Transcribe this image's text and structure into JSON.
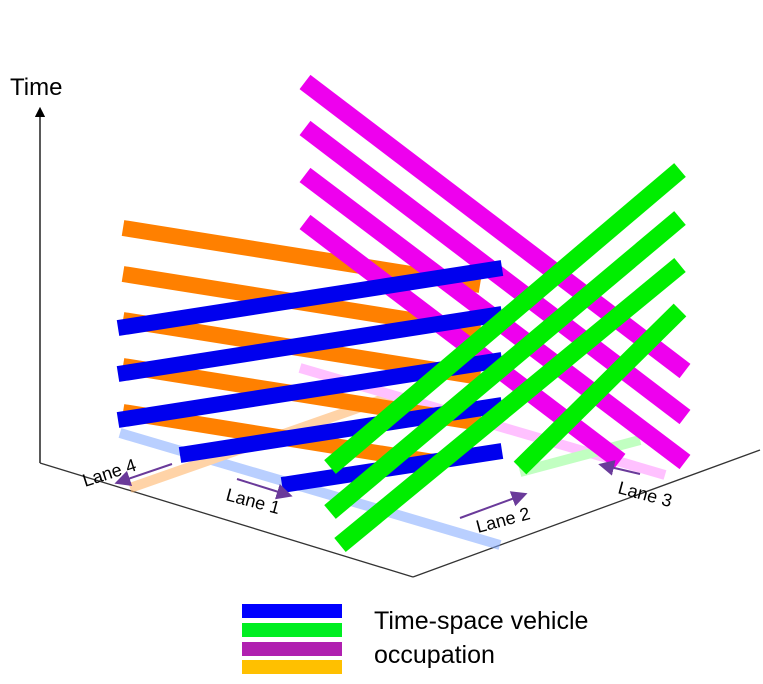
{
  "axis": {
    "label": "Time"
  },
  "lanes": [
    "Lane 4",
    "Lane 1",
    "Lane 2",
    "Lane 3"
  ],
  "legend": {
    "label": "Time-space vehicle occupation"
  }
}
